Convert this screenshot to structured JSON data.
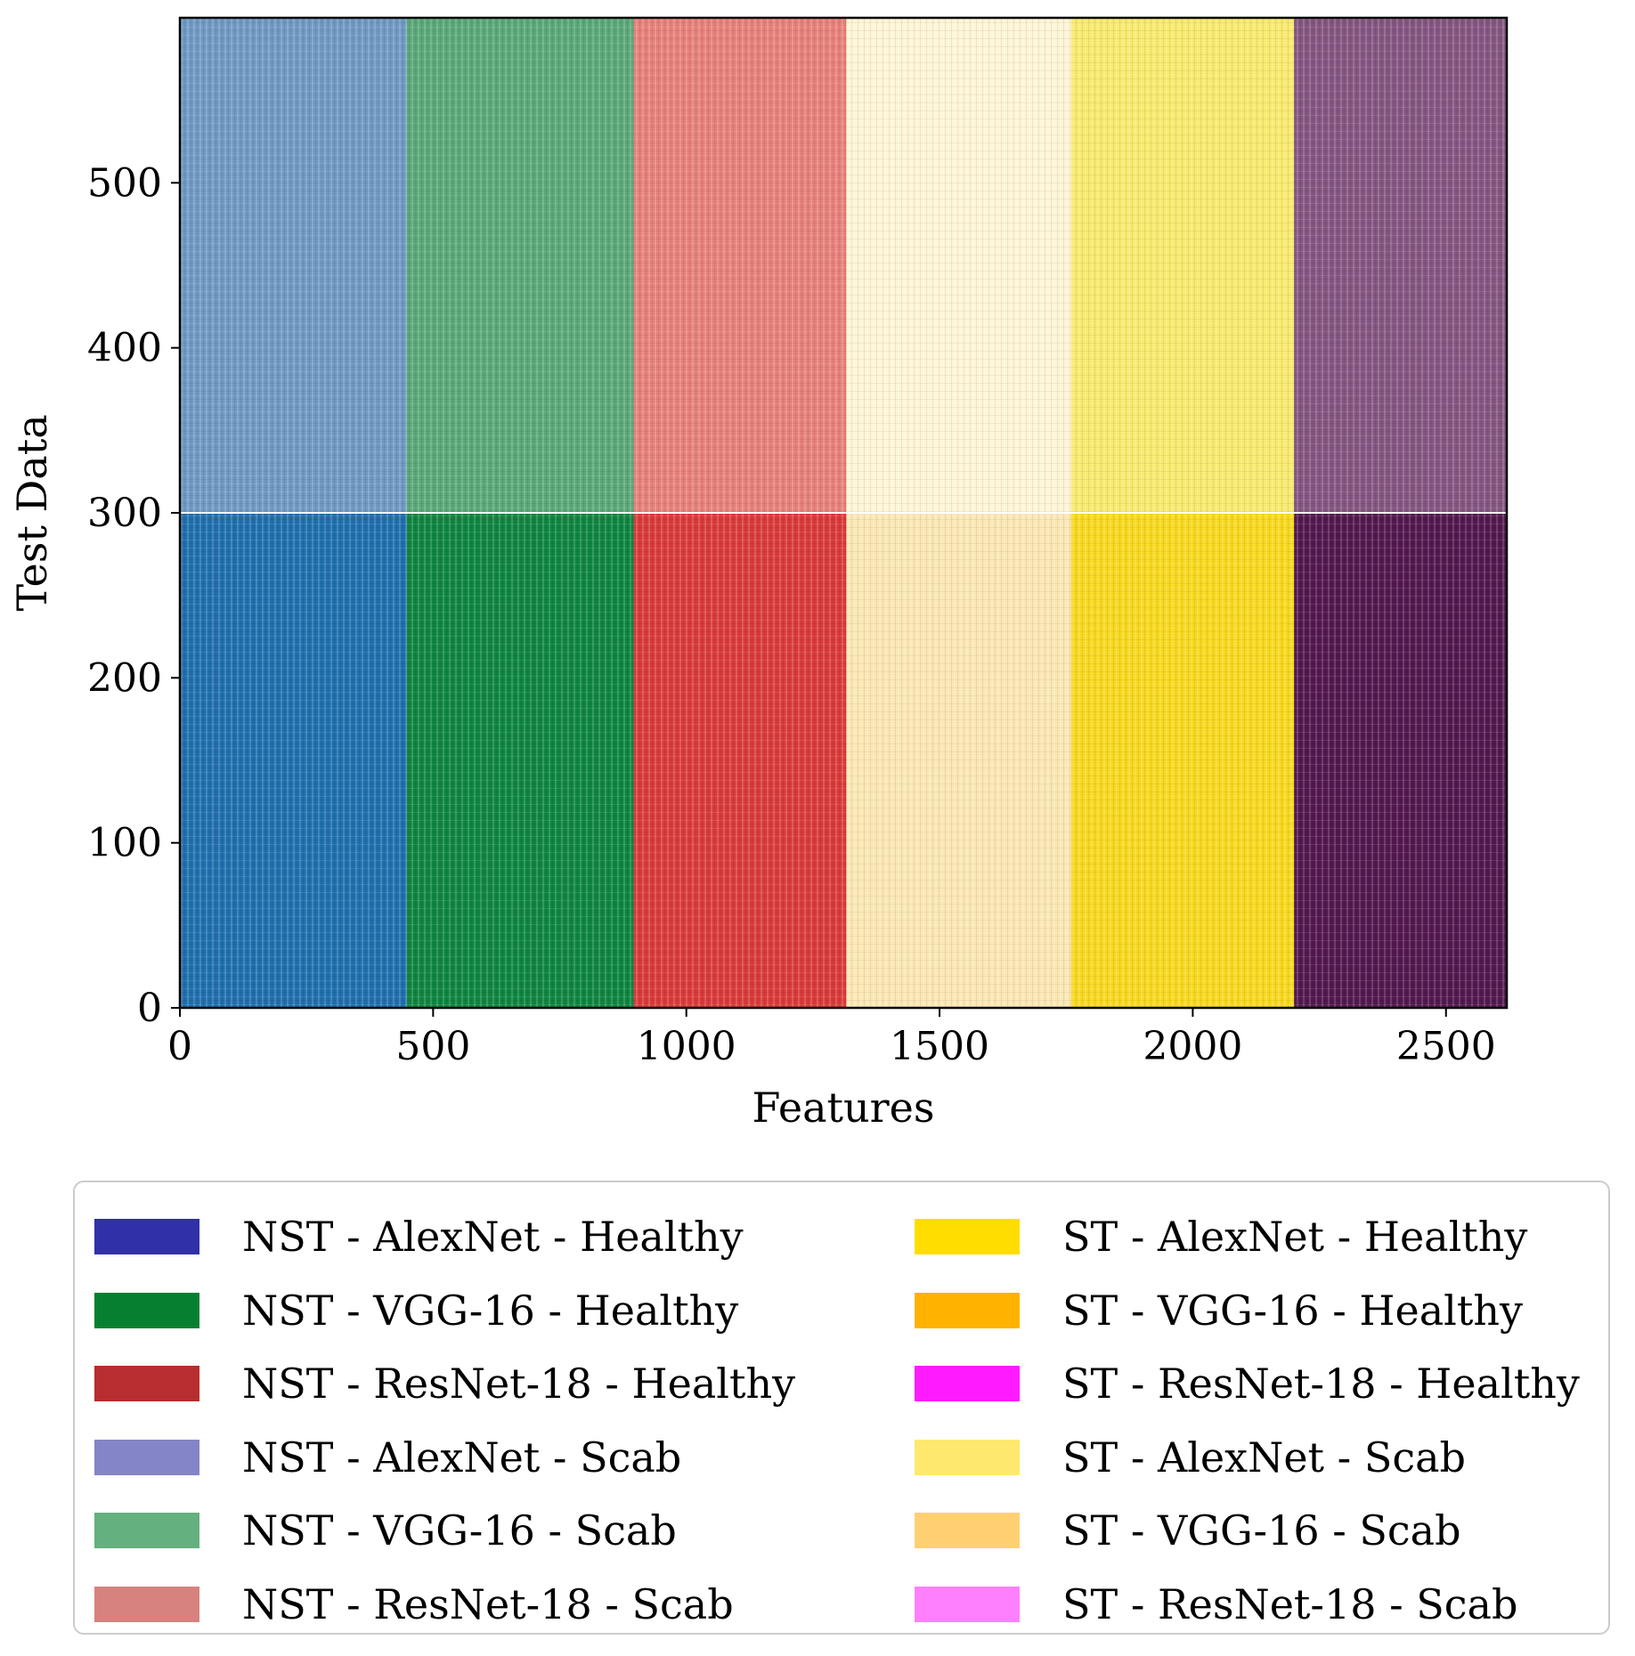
{
  "chart_data": {
    "type": "heatmap",
    "title": "",
    "xlabel": "Features",
    "ylabel": "Test Data",
    "xlim": [
      0,
      2620
    ],
    "ylim": [
      0,
      600
    ],
    "x_ticks": [
      0,
      500,
      1000,
      1500,
      2000,
      2500
    ],
    "y_ticks": [
      0,
      100,
      200,
      300,
      400,
      500
    ],
    "row_groups": [
      {
        "name": "Healthy",
        "y_range": [
          0,
          300
        ]
      },
      {
        "name": "Scab",
        "y_range": [
          300,
          600
        ]
      }
    ],
    "feature_blocks": [
      {
        "name": "NST - AlexNet",
        "x_range": [
          0,
          448
        ],
        "healthy_color": "#1f6fad",
        "scab_color": "#6f99c2"
      },
      {
        "name": "NST - VGG-16",
        "x_range": [
          448,
          896
        ],
        "healthy_color": "#0e8540",
        "scab_color": "#5aa878"
      },
      {
        "name": "NST - ResNet-18",
        "x_range": [
          896,
          1316
        ],
        "healthy_color": "#d93a3a",
        "scab_color": "#e7807a"
      },
      {
        "name": "ST - AlexNet",
        "x_range": [
          1316,
          1760
        ],
        "healthy_color": "#fbe7b4",
        "scab_color": "#fff4d6"
      },
      {
        "name": "ST - VGG-16",
        "x_range": [
          1760,
          2200
        ],
        "healthy_color": "#f8d81e",
        "scab_color": "#f8ea6e"
      },
      {
        "name": "ST - ResNet-18",
        "x_range": [
          2200,
          2620
        ],
        "healthy_color": "#52184f",
        "scab_color": "#845581"
      }
    ],
    "legend": {
      "position": "bottom",
      "columns": 2,
      "entries": [
        {
          "label": "NST - AlexNet - Healthy",
          "color": "#3030a8"
        },
        {
          "label": "NST - VGG-16 - Healthy",
          "color": "#068030"
        },
        {
          "label": "NST - ResNet-18 - Healthy",
          "color": "#b82d2d"
        },
        {
          "label": "NST - AlexNet - Scab",
          "color": "#8484c8"
        },
        {
          "label": "NST - VGG-16 - Scab",
          "color": "#64b07e"
        },
        {
          "label": "NST - ResNet-18 - Scab",
          "color": "#d7827f"
        },
        {
          "label": "ST - AlexNet - Healthy",
          "color": "#ffdd00"
        },
        {
          "label": "ST - VGG-16 - Healthy",
          "color": "#ffb300"
        },
        {
          "label": "ST - ResNet-18 - Healthy",
          "color": "#ff1aff"
        },
        {
          "label": "ST - AlexNet - Scab",
          "color": "#ffe86e"
        },
        {
          "label": "ST - VGG-16 - Scab",
          "color": "#ffd072"
        },
        {
          "label": "ST - ResNet-18 - Scab",
          "color": "#ff80ff"
        }
      ]
    }
  }
}
